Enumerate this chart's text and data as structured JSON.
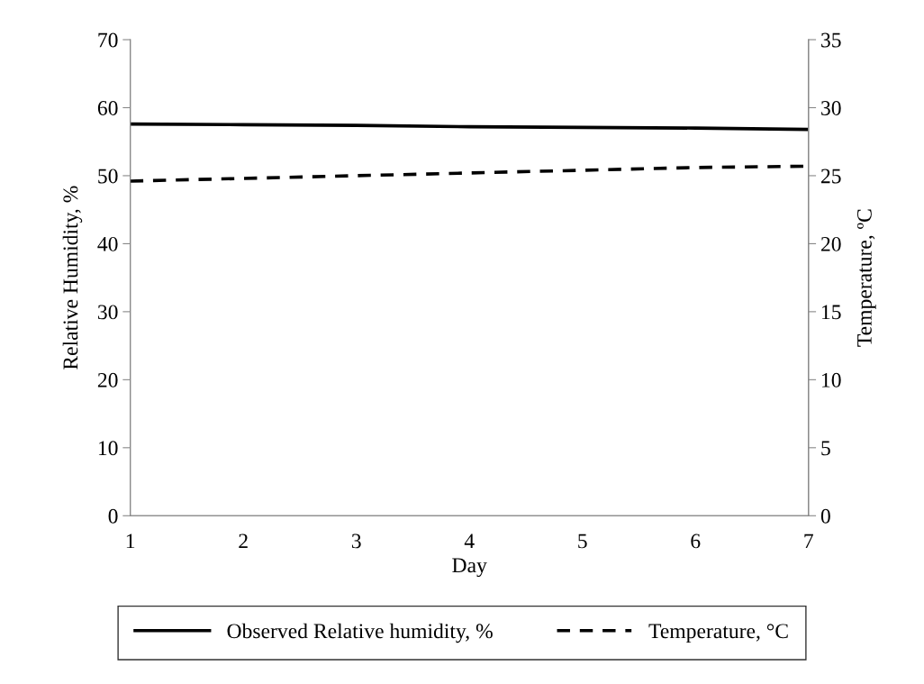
{
  "chart_data": {
    "type": "line",
    "xlabel": "Day",
    "ylabel": "Relative Humidity, %",
    "y2label": "Temperature, ºC",
    "x": [
      1,
      2,
      3,
      4,
      5,
      6,
      7
    ],
    "series": [
      {
        "name": "Observed Relative humidity, %",
        "color": "#000000",
        "line_style": "solid",
        "values": [
          57.6,
          57.5,
          57.4,
          57.2,
          57.1,
          57.0,
          56.8
        ]
      },
      {
        "name": "Temperature, °C",
        "color": "#000000",
        "line_style": "dashed",
        "axis": "y2",
        "values": [
          24.6,
          24.8,
          25.0,
          25.2,
          25.4,
          25.6,
          25.7
        ]
      }
    ],
    "xlim": [
      1,
      7
    ],
    "xticks": [
      1,
      2,
      3,
      4,
      5,
      6,
      7
    ],
    "ylim": [
      0,
      70
    ],
    "yticks": [
      0,
      10,
      20,
      30,
      40,
      50,
      60,
      70
    ],
    "y2lim": [
      0,
      35
    ],
    "y2ticks": [
      0,
      5,
      10,
      15,
      20,
      25,
      30,
      35
    ],
    "grid": false,
    "legend": "bottom",
    "marker": "none"
  }
}
